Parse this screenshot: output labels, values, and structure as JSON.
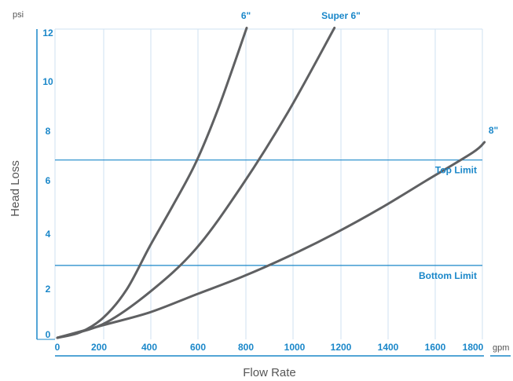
{
  "chart_data": {
    "type": "line",
    "title": "",
    "xlabel": "Flow Rate",
    "ylabel": "Head Loss",
    "x_unit": "gpm",
    "y_unit": "psi",
    "xlim": [
      0,
      1850
    ],
    "ylim": [
      -0.1,
      12.2
    ],
    "x_ticks": [
      "0",
      "200",
      "400",
      "600",
      "800",
      "1000",
      "1200",
      "1400",
      "1600",
      "1800"
    ],
    "y_ticks": [
      "0",
      "2",
      "4",
      "6",
      "8",
      "10",
      "12"
    ],
    "grid": "vertical",
    "series": [
      {
        "name": "6\"",
        "color": "#5f6062",
        "x": [
          0,
          100,
          200,
          300,
          400,
          500,
          600,
          700,
          820
        ],
        "y": [
          0,
          0.22,
          0.8,
          1.9,
          3.6,
          5.2,
          6.9,
          9.1,
          12.2
        ]
      },
      {
        "name": "Super 6\"",
        "color": "#5f6062",
        "x": [
          0,
          200,
          400,
          600,
          800,
          1000,
          1200
        ],
        "y": [
          0,
          0.55,
          1.8,
          3.5,
          6.0,
          8.9,
          12.2
        ]
      },
      {
        "name": "8\"",
        "color": "#5f6062",
        "x": [
          0,
          200,
          400,
          600,
          800,
          1000,
          1200,
          1400,
          1600,
          1800,
          1850
        ],
        "y": [
          0,
          0.5,
          1.0,
          1.7,
          2.4,
          3.2,
          4.1,
          5.1,
          6.2,
          7.3,
          7.7
        ]
      }
    ],
    "reference_lines": [
      {
        "label": "Top Limit",
        "y": 7.0,
        "color": "#1a87c9"
      },
      {
        "label": "Bottom Limit",
        "y": 2.85,
        "color": "#1a87c9"
      }
    ],
    "axis_color": "#1a87c9",
    "grid_color": "#cfe2f2"
  }
}
